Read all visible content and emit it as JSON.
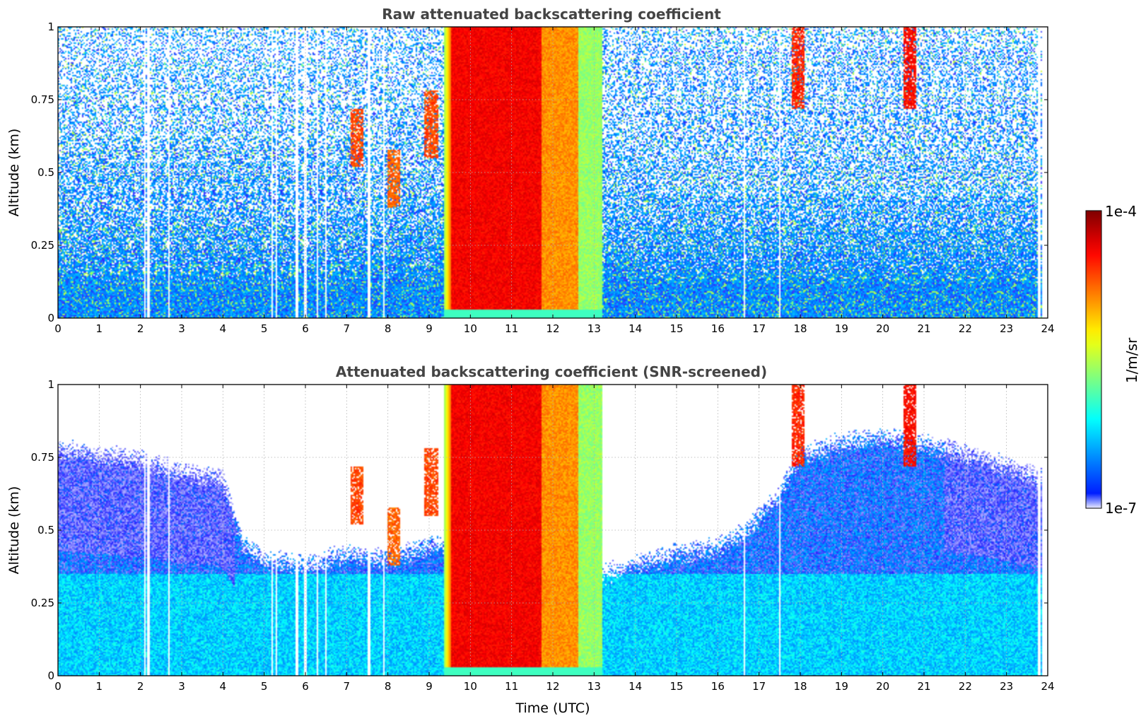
{
  "chart_data": {
    "type": "heatmap",
    "xlabel": "Time (UTC)",
    "xlim": [
      0,
      24
    ],
    "xticks": [
      "0",
      "1",
      "2",
      "3",
      "4",
      "5",
      "6",
      "7",
      "8",
      "9",
      "10",
      "11",
      "12",
      "13",
      "14",
      "15",
      "16",
      "17",
      "18",
      "19",
      "20",
      "21",
      "22",
      "23",
      "24"
    ],
    "ylim": [
      0,
      1
    ],
    "yticks": [
      "0",
      "0.25",
      "0.5",
      "0.75",
      "1"
    ],
    "grid": true,
    "colormap": "jet",
    "colorbar": {
      "label": "1/m/sr",
      "min_label": "1e-7",
      "max_label": "1e-4",
      "scale": "log",
      "range": [
        1e-07,
        0.0001
      ],
      "placement": "right"
    },
    "panels": [
      {
        "id": "raw",
        "title": "Raw attenuated backscattering coefficient",
        "ylabel": "Altitude (km)",
        "xlabel": "",
        "screened": false
      },
      {
        "id": "screened",
        "title": "Attenuated backscattering coefficient (SNR-screened)",
        "ylabel": "Altitude (km)",
        "xlabel": "Time (UTC)",
        "screened": true
      }
    ],
    "features": {
      "thick_cloud": {
        "t_start": 9.35,
        "t_end": 13.2,
        "log_value_core": -4.4,
        "log_value_edge": -5.6
      },
      "cloud_patches": [
        {
          "t": 7.25,
          "alt_low": 0.52,
          "alt_high": 0.72,
          "log_value": -4.5
        },
        {
          "t": 8.15,
          "alt_low": 0.38,
          "alt_high": 0.58,
          "log_value": -4.6
        },
        {
          "t": 9.05,
          "alt_low": 0.55,
          "alt_high": 0.78,
          "log_value": -4.5
        },
        {
          "t": 17.95,
          "alt_low": 0.72,
          "alt_high": 1.0,
          "log_value": -4.4
        },
        {
          "t": 20.65,
          "alt_low": 0.72,
          "alt_high": 1.0,
          "log_value": -4.3
        }
      ],
      "data_gaps": [
        2.1,
        2.2,
        2.7,
        5.2,
        5.3,
        5.8,
        6.0,
        6.3,
        6.5,
        7.55,
        7.9,
        16.65,
        17.5,
        23.8
      ],
      "boundary_layer_top_km": [
        [
          0,
          0.78
        ],
        [
          1,
          0.76
        ],
        [
          2,
          0.74
        ],
        [
          3,
          0.7
        ],
        [
          4,
          0.68
        ],
        [
          4.5,
          0.45
        ],
        [
          5,
          0.4
        ],
        [
          6,
          0.38
        ],
        [
          7,
          0.42
        ],
        [
          8,
          0.4
        ],
        [
          9,
          0.45
        ],
        [
          13.3,
          0.35
        ],
        [
          14,
          0.38
        ],
        [
          15,
          0.42
        ],
        [
          16,
          0.44
        ],
        [
          16.7,
          0.5
        ],
        [
          17.5,
          0.62
        ],
        [
          18,
          0.76
        ],
        [
          19,
          0.8
        ],
        [
          20,
          0.82
        ],
        [
          21,
          0.8
        ],
        [
          22,
          0.76
        ],
        [
          23,
          0.72
        ],
        [
          23.8,
          0.68
        ]
      ]
    }
  }
}
